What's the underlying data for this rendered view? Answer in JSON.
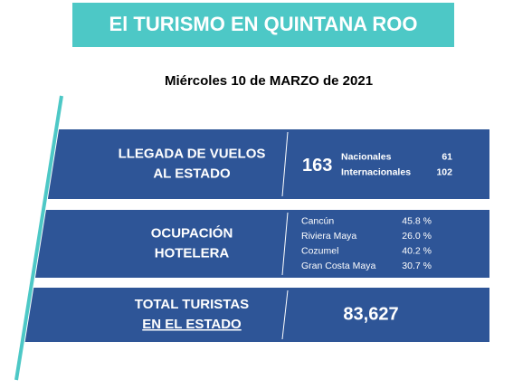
{
  "header": {
    "title": "El TURISMO EN QUINTANA ROO",
    "date": "Miércoles 10  de MARZO de 2021"
  },
  "rows": [
    {
      "label_lines": [
        "LLEGADA DE VUELOS",
        "AL ESTADO"
      ],
      "total": "163",
      "breakdown": [
        {
          "name": "Nacionales",
          "value": "61"
        },
        {
          "name": "Internacionales",
          "value": "102"
        }
      ]
    },
    {
      "label_lines": [
        "OCUPACIÓN",
        "HOTELERA"
      ],
      "breakdown": [
        {
          "name": "Cancún",
          "value": "45.8 %"
        },
        {
          "name": "Riviera Maya",
          "value": "26.0 %"
        },
        {
          "name": "Cozumel",
          "value": "40.2 %"
        },
        {
          "name": "Gran Costa Maya",
          "value": "30.7 %"
        }
      ]
    },
    {
      "label_lines": [
        "TOTAL TURISTAS",
        "EN EL ESTADO"
      ],
      "total": "83,627"
    }
  ]
}
